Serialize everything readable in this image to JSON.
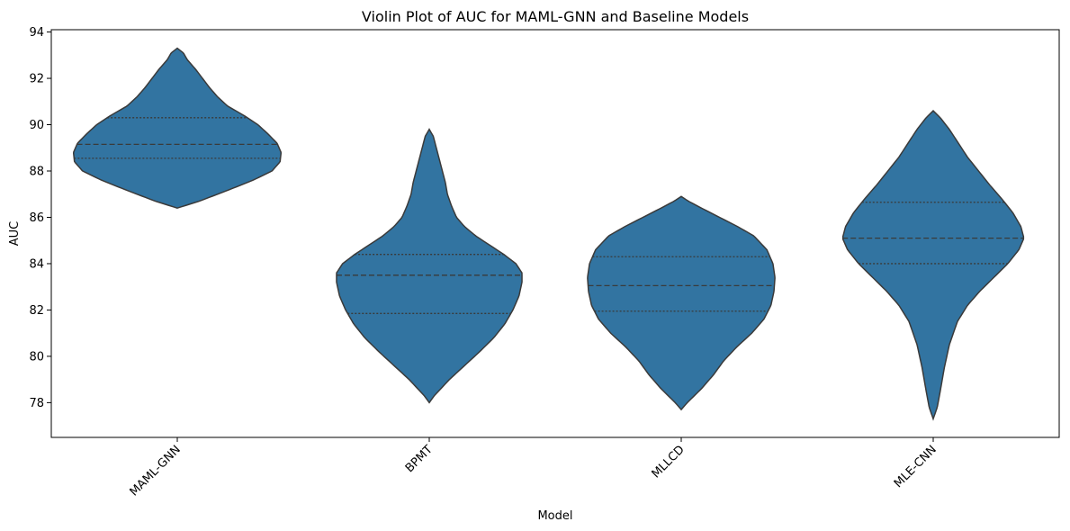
{
  "chart_data": {
    "type": "violin",
    "title": "Violin Plot of AUC for MAML-GNN and Baseline Models",
    "xlabel": "Model",
    "ylabel": "AUC",
    "ylim": [
      76.5,
      94.1
    ],
    "yticks": [
      78,
      80,
      82,
      84,
      86,
      88,
      90,
      92,
      94
    ],
    "ytick_labels": [
      "78",
      "80",
      "82",
      "84",
      "86",
      "88",
      "90",
      "92",
      "94"
    ],
    "inner": "quartile",
    "x_tick_rotation_deg": 45,
    "grid": false,
    "color": "#3274a1",
    "edge_color": "#3a3a3a",
    "categories": [
      "MAML-GNN",
      "BPMT",
      "MLLCD",
      "MLE-CNN"
    ],
    "violins": [
      {
        "name": "MAML-GNN",
        "min": 86.4,
        "max": 93.3,
        "q1": 88.55,
        "median": 89.15,
        "q3": 90.3,
        "density": [
          [
            86.4,
            0.0
          ],
          [
            86.7,
            0.22
          ],
          [
            87.2,
            0.52
          ],
          [
            87.6,
            0.75
          ],
          [
            88.0,
            0.94
          ],
          [
            88.4,
            1.02
          ],
          [
            88.8,
            1.03
          ],
          [
            89.2,
            0.99
          ],
          [
            89.6,
            0.9
          ],
          [
            90.0,
            0.8
          ],
          [
            90.4,
            0.66
          ],
          [
            90.8,
            0.5
          ],
          [
            91.2,
            0.4
          ],
          [
            91.6,
            0.32
          ],
          [
            92.0,
            0.25
          ],
          [
            92.4,
            0.18
          ],
          [
            92.8,
            0.1
          ],
          [
            93.1,
            0.06
          ],
          [
            93.3,
            0.0
          ]
        ]
      },
      {
        "name": "BPMT",
        "min": 78.0,
        "max": 89.8,
        "q1": 81.85,
        "median": 83.5,
        "q3": 84.4,
        "density": [
          [
            78.0,
            0.0
          ],
          [
            78.3,
            0.05
          ],
          [
            79.0,
            0.2
          ],
          [
            79.6,
            0.35
          ],
          [
            80.2,
            0.5
          ],
          [
            80.8,
            0.64
          ],
          [
            81.4,
            0.75
          ],
          [
            82.0,
            0.83
          ],
          [
            82.6,
            0.89
          ],
          [
            83.2,
            0.92
          ],
          [
            83.6,
            0.92
          ],
          [
            84.0,
            0.86
          ],
          [
            84.4,
            0.74
          ],
          [
            84.8,
            0.6
          ],
          [
            85.2,
            0.46
          ],
          [
            85.6,
            0.35
          ],
          [
            86.0,
            0.27
          ],
          [
            86.5,
            0.22
          ],
          [
            87.0,
            0.18
          ],
          [
            87.5,
            0.16
          ],
          [
            88.0,
            0.13
          ],
          [
            88.5,
            0.1
          ],
          [
            89.0,
            0.07
          ],
          [
            89.5,
            0.04
          ],
          [
            89.8,
            0.0
          ]
        ]
      },
      {
        "name": "MLLCD",
        "min": 77.7,
        "max": 86.9,
        "q1": 81.95,
        "median": 83.05,
        "q3": 84.3,
        "density": [
          [
            77.7,
            0.0
          ],
          [
            78.0,
            0.06
          ],
          [
            78.6,
            0.2
          ],
          [
            79.2,
            0.32
          ],
          [
            79.8,
            0.42
          ],
          [
            80.4,
            0.55
          ],
          [
            81.0,
            0.7
          ],
          [
            81.6,
            0.82
          ],
          [
            82.2,
            0.89
          ],
          [
            82.8,
            0.92
          ],
          [
            83.4,
            0.93
          ],
          [
            84.0,
            0.91
          ],
          [
            84.6,
            0.85
          ],
          [
            85.2,
            0.72
          ],
          [
            85.6,
            0.56
          ],
          [
            86.0,
            0.38
          ],
          [
            86.4,
            0.2
          ],
          [
            86.7,
            0.07
          ],
          [
            86.9,
            0.0
          ]
        ]
      },
      {
        "name": "MLE-CNN",
        "min": 77.3,
        "max": 90.6,
        "q1": 84.0,
        "median": 85.1,
        "q3": 86.65,
        "density": [
          [
            77.3,
            0.0
          ],
          [
            77.8,
            0.04
          ],
          [
            78.5,
            0.07
          ],
          [
            79.5,
            0.11
          ],
          [
            80.5,
            0.16
          ],
          [
            81.5,
            0.24
          ],
          [
            82.2,
            0.34
          ],
          [
            82.8,
            0.46
          ],
          [
            83.4,
            0.6
          ],
          [
            84.0,
            0.74
          ],
          [
            84.6,
            0.85
          ],
          [
            85.1,
            0.9
          ],
          [
            85.6,
            0.87
          ],
          [
            86.2,
            0.79
          ],
          [
            86.8,
            0.68
          ],
          [
            87.4,
            0.56
          ],
          [
            88.0,
            0.45
          ],
          [
            88.6,
            0.34
          ],
          [
            89.2,
            0.25
          ],
          [
            89.8,
            0.16
          ],
          [
            90.3,
            0.07
          ],
          [
            90.6,
            0.0
          ]
        ]
      }
    ]
  }
}
